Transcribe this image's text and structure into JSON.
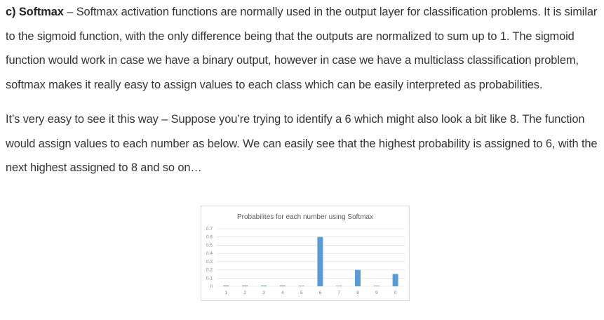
{
  "paragraph1": {
    "lead": "c) Softmax",
    "body": " – Softmax activation functions are normally used in the output layer for classification problems. It is similar to the sigmoid function, with the only difference being that the outputs are normalized to sum up to 1. The sigmoid function would work in case we have a binary output, however in case we have a multiclass classification problem, softmax makes it really easy to assign values to each class which can be easily interpreted as probabilities."
  },
  "paragraph2": {
    "text": "It’s very easy to see it this way – Suppose you’re trying to identify a 6 which might also look a bit like 8. The function would assign values to each number as below. We can easily see that the highest probability is assigned to 6, with the next highest assigned to 8 and so on…"
  },
  "colors": {
    "bar": "#5b9bd5",
    "grid": "#d9d9d9",
    "text": "#333333"
  },
  "chart_data": {
    "type": "bar",
    "title": "Probabilites for each number using Softmax",
    "xlabel": "",
    "ylabel": "",
    "categories": [
      "1",
      "2",
      "3",
      "4",
      "5",
      "6",
      "7",
      "8",
      "9",
      "0"
    ],
    "values": [
      0.01,
      0.01,
      0.01,
      0.01,
      0.005,
      0.6,
      0.005,
      0.2,
      0.005,
      0.15
    ],
    "ylim": [
      0,
      0.7
    ],
    "yticks": [
      "0",
      "0.1",
      "0.2",
      "0.3",
      "0.4",
      "0.5",
      "0.6",
      "0.7"
    ],
    "grid": true,
    "legend": "none"
  }
}
